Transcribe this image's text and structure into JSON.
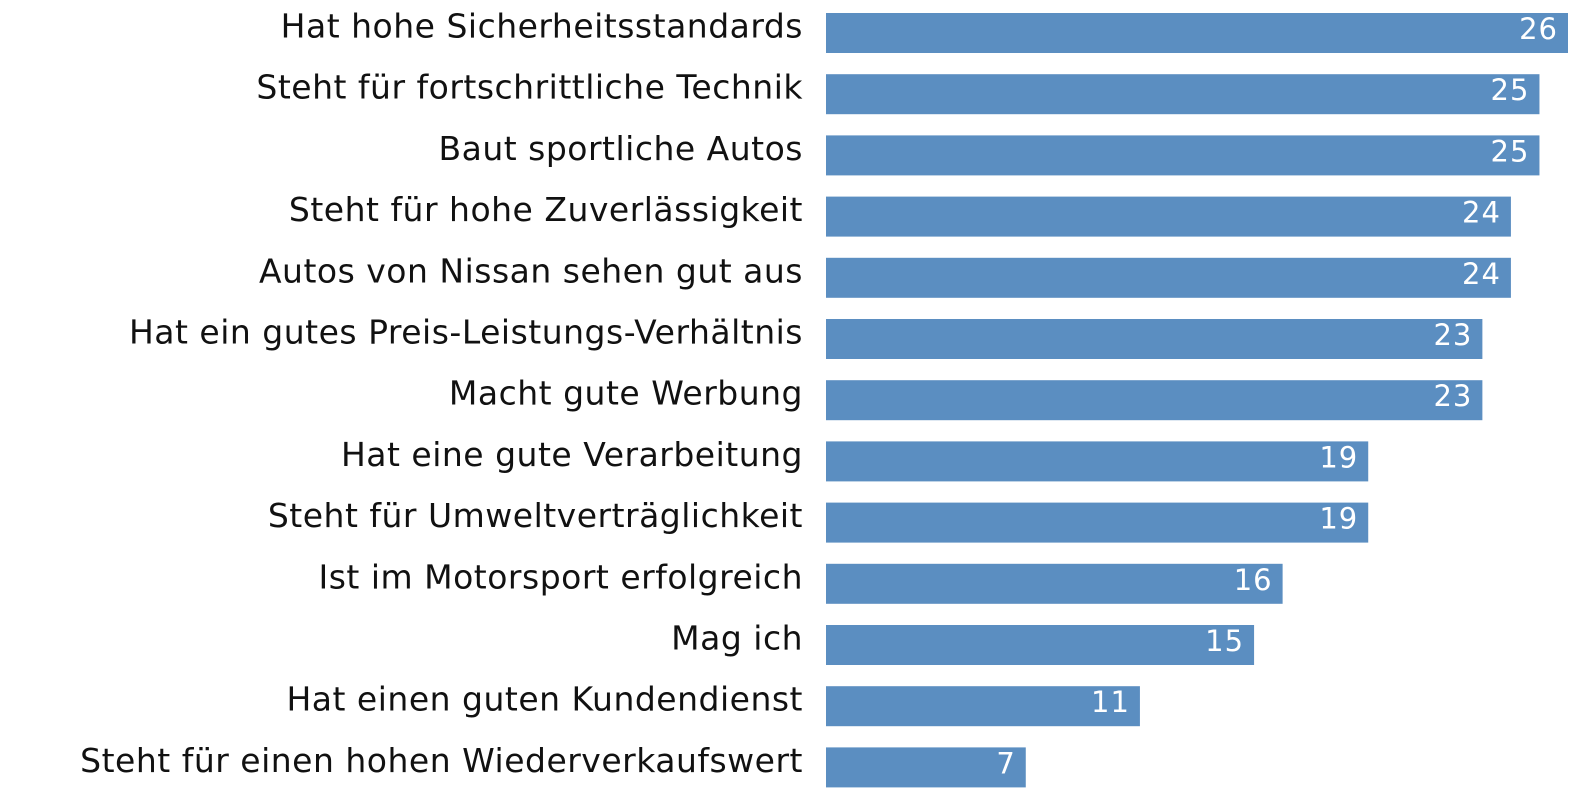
{
  "chart_data": {
    "type": "barh",
    "color": "#5b8ec1",
    "categories": [
      "Hat hohe Sicherheitsstandards",
      "Steht für fortschrittliche Technik",
      "Baut sportliche Autos",
      "Steht für hohe Zuverlässigkeit",
      "Autos von Nissan sehen gut aus",
      "Hat ein gutes Preis-Leistungs-Verhältnis",
      "Macht gute Werbung",
      "Hat eine gute Verarbeitung",
      "Steht für Umweltverträglichkeit",
      "Ist im Motorsport erfolgreich",
      "Mag ich",
      "Hat einen guten Kundendienst",
      "Steht für einen hohen Wiederverkaufswert"
    ],
    "values": [
      26,
      25,
      25,
      24,
      24,
      23,
      23,
      19,
      19,
      16,
      15,
      11,
      7
    ]
  }
}
